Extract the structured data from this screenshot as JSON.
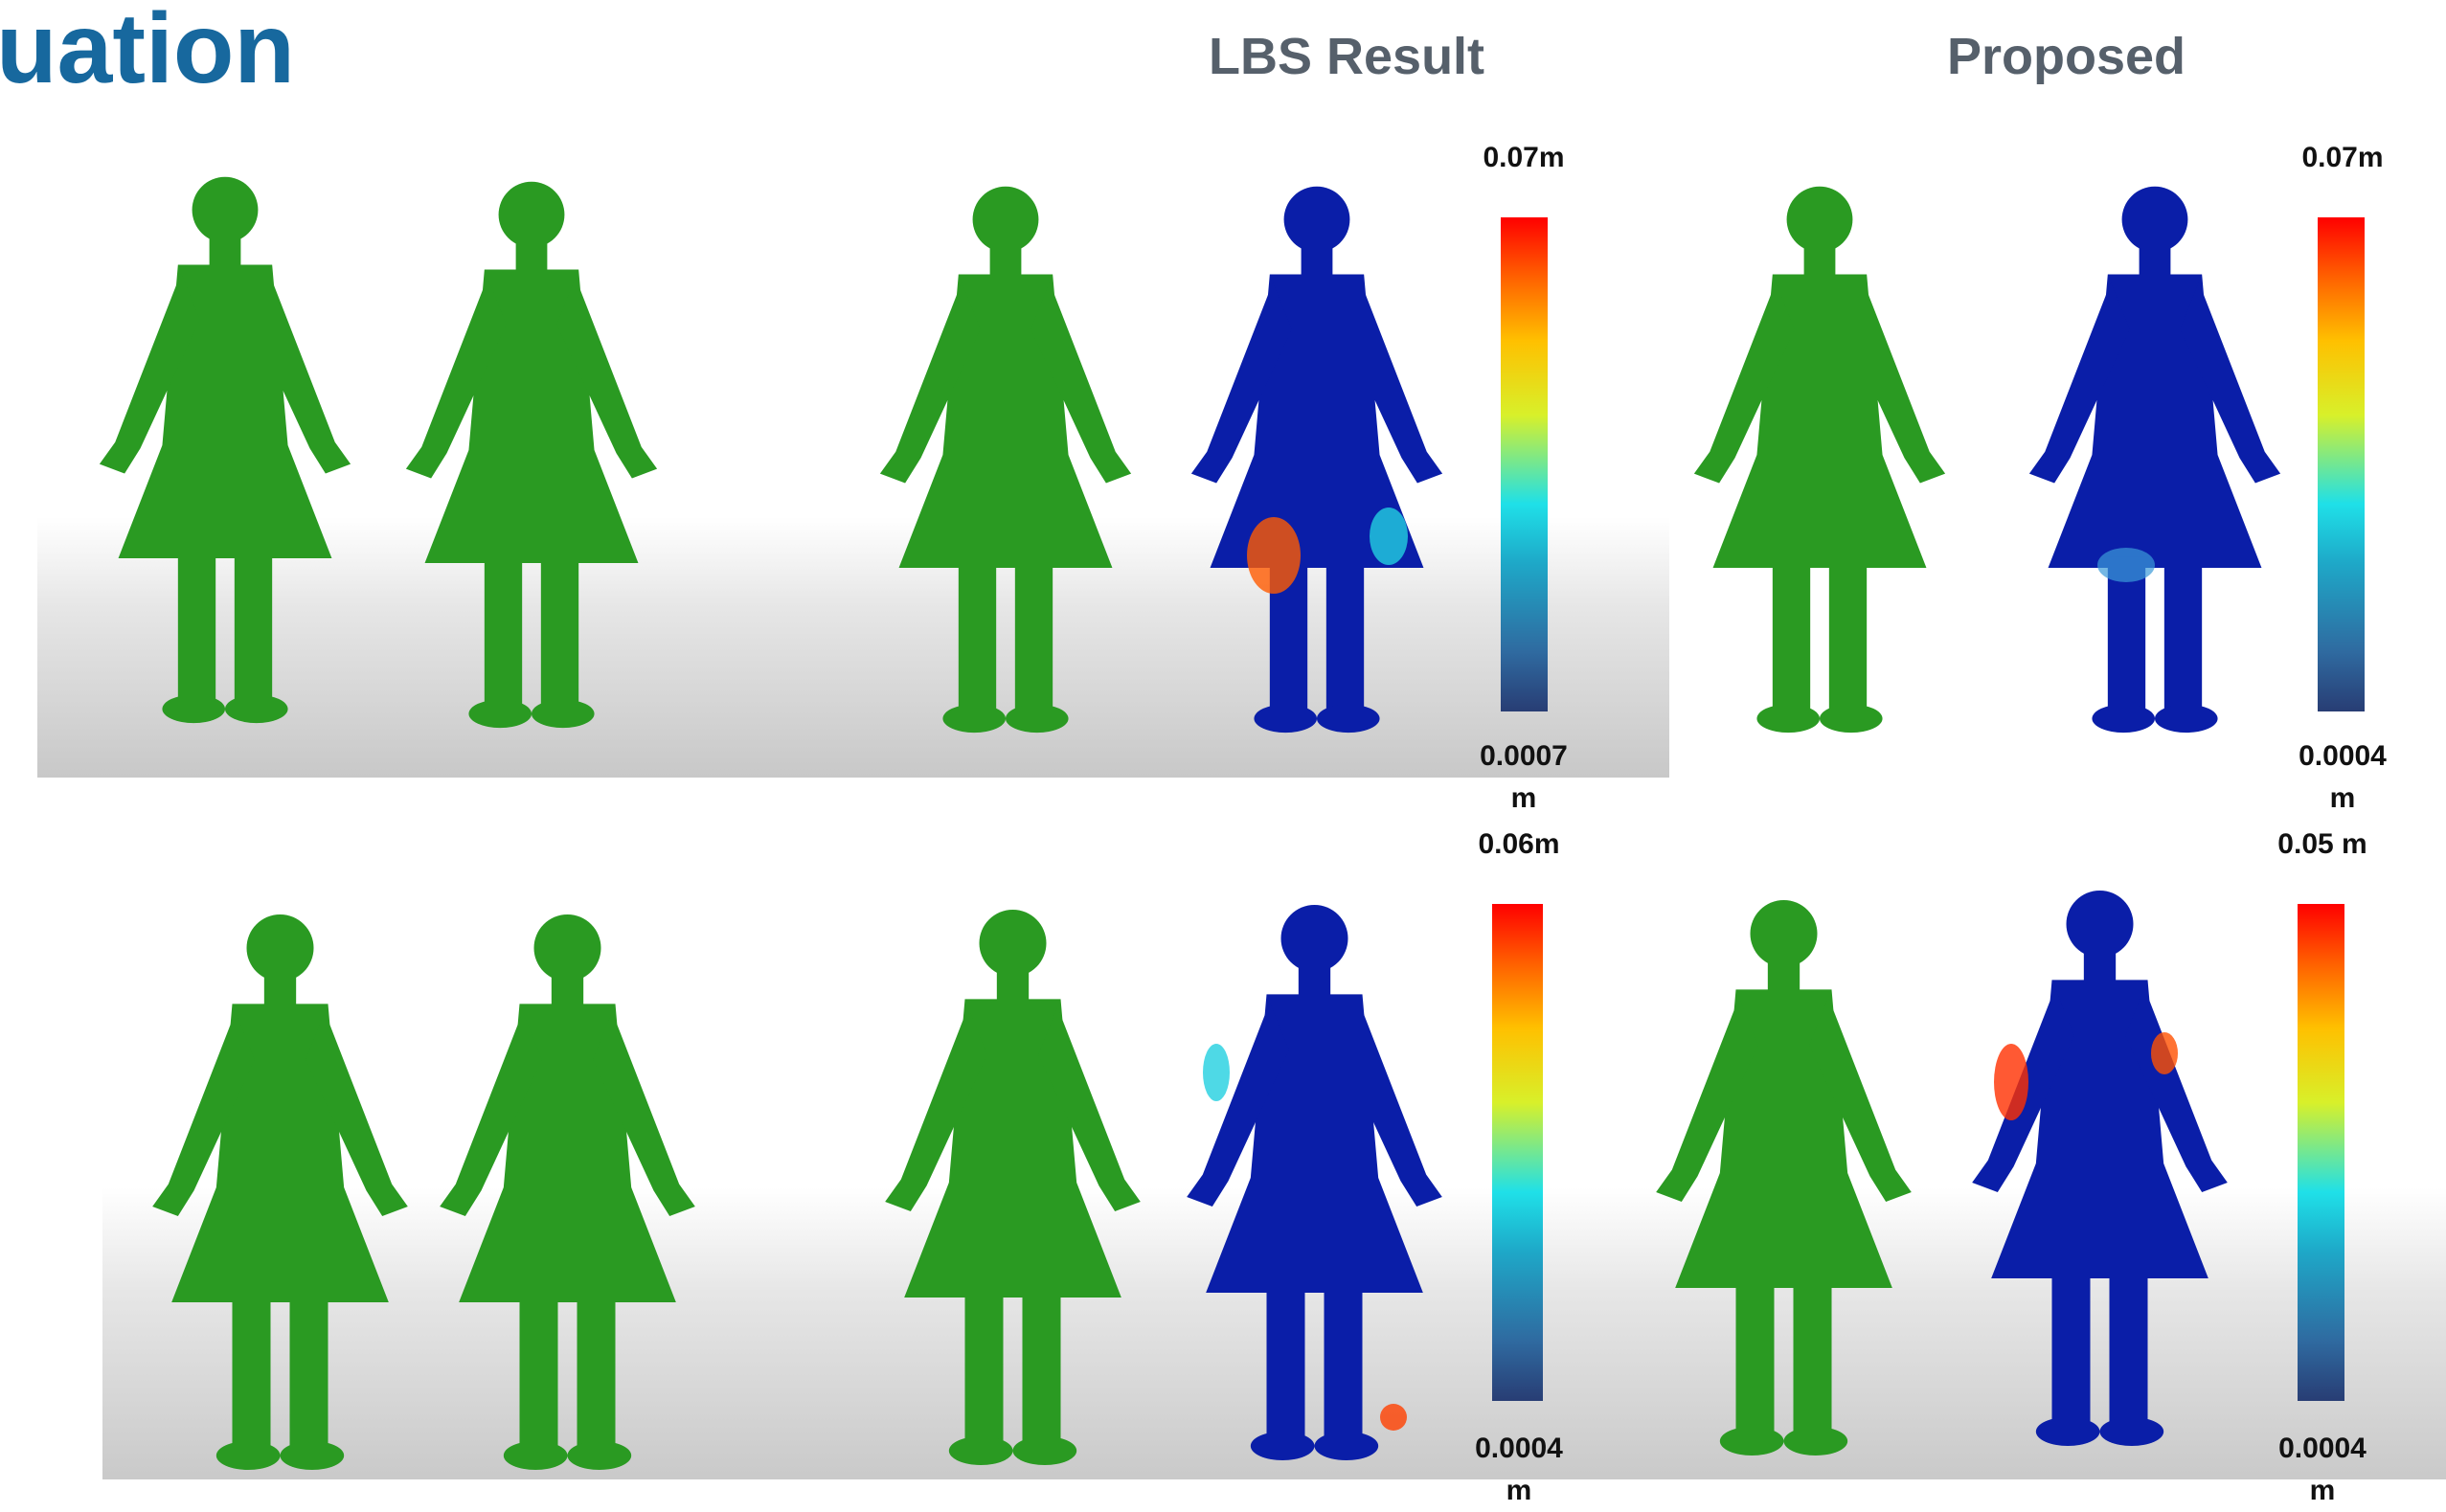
{
  "header": {
    "title": "uation",
    "columns": [
      "LBS Result",
      "Proposed"
    ]
  },
  "colorbars": [
    {
      "max": "0.07m",
      "min": "0.0007 m"
    },
    {
      "max": "0.07m",
      "min": "0.0004 m"
    },
    {
      "max": "0.06m",
      "min": "0.0004 m"
    },
    {
      "max": "0.05 m",
      "min": "0.0004 m"
    }
  ]
}
